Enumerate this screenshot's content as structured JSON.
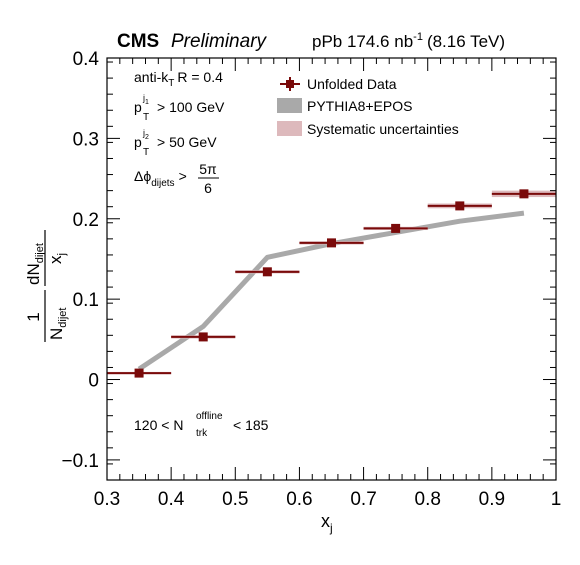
{
  "header": {
    "experiment": "CMS",
    "status": "Preliminary",
    "lumi_prefix": "pPb 174.6 nb",
    "lumi_exp": "-1",
    "energy": "(8.16 TeV)"
  },
  "cuts": {
    "algo_prefix": "anti-k",
    "algo_sub": "T",
    "algo_suffix": "R = 0.4",
    "pt1_main": "p",
    "pt1_sup": "j",
    "pt1_supsub": "1",
    "pt1_sub": "T",
    "pt1_value": "> 100 GeV",
    "pt2_main": "p",
    "pt2_sup": "j",
    "pt2_supsub": "2",
    "pt2_sub": "T",
    "pt2_value": "> 50 GeV",
    "dphi_main": "Δϕ",
    "dphi_sub": "dijets",
    "dphi_gt": ">",
    "dphi_num": "5π",
    "dphi_den": "6",
    "mult_prefix": "120 < N",
    "mult_sup": "offline",
    "mult_sub": "trk",
    "mult_suffix": "< 185"
  },
  "axes": {
    "xlabel_main": "x",
    "xlabel_sub": "j",
    "ylabel_one": "1",
    "ylabel_N": "N",
    "ylabel_N_sub": "dijet",
    "ylabel_dN": "dN",
    "ylabel_dN_sub": "dijet",
    "ylabel_dx": "x",
    "ylabel_dx_sub": "j"
  },
  "legend": {
    "data": "Unfolded Data",
    "mc": "PYTHIA8+EPOS",
    "syst": "Systematic uncertainties"
  },
  "colors": {
    "data": "#7a0a0a",
    "mc": "#a9a9a9",
    "syst": "#ddb9bc"
  },
  "chart_data": {
    "type": "scatter",
    "xlim": [
      0.3,
      1.0
    ],
    "ylim": [
      -0.125,
      0.4
    ],
    "x_ticks": [
      0.3,
      0.4,
      0.5,
      0.6,
      0.7,
      0.8,
      0.9,
      1.0
    ],
    "x_tick_labels": [
      "0.3",
      "0.4",
      "0.5",
      "0.6",
      "0.7",
      "0.8",
      "0.9",
      "1"
    ],
    "y_ticks": [
      -0.1,
      0,
      0.1,
      0.2,
      0.3,
      0.4
    ],
    "y_tick_labels": [
      "−0.1",
      "0",
      "0.1",
      "0.2",
      "0.3",
      "0.4"
    ],
    "grid": false,
    "legend_position": "top-right",
    "series": [
      {
        "name": "Unfolded Data",
        "type": "points",
        "x": [
          0.35,
          0.45,
          0.55,
          0.65,
          0.75,
          0.85,
          0.95
        ],
        "x_low": [
          0.3,
          0.4,
          0.5,
          0.6,
          0.7,
          0.8,
          0.9
        ],
        "x_high": [
          0.4,
          0.5,
          0.6,
          0.7,
          0.8,
          0.9,
          1.0
        ],
        "y": [
          0.008,
          0.053,
          0.134,
          0.17,
          0.188,
          0.216,
          0.231
        ],
        "syst": [
          0.0015,
          0.002,
          0.002,
          0.002,
          0.002,
          0.003,
          0.004
        ]
      },
      {
        "name": "PYTHIA8+EPOS",
        "type": "line",
        "x": [
          0.35,
          0.45,
          0.55,
          0.65,
          0.75,
          0.85,
          0.95
        ],
        "y": [
          0.013,
          0.066,
          0.152,
          0.169,
          0.183,
          0.197,
          0.207
        ]
      }
    ]
  }
}
